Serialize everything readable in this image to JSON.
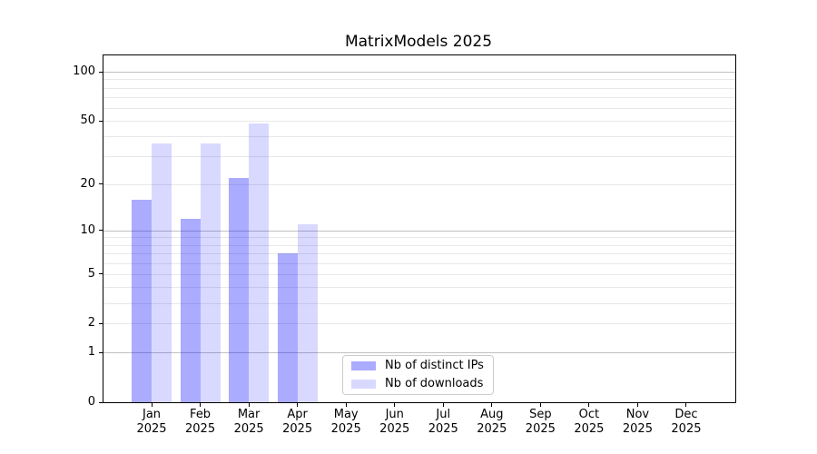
{
  "chart_data": {
    "type": "bar",
    "title": "MatrixModels 2025",
    "categories": [
      {
        "month": "Jan",
        "year": "2025"
      },
      {
        "month": "Feb",
        "year": "2025"
      },
      {
        "month": "Mar",
        "year": "2025"
      },
      {
        "month": "Apr",
        "year": "2025"
      },
      {
        "month": "May",
        "year": "2025"
      },
      {
        "month": "Jun",
        "year": "2025"
      },
      {
        "month": "Jul",
        "year": "2025"
      },
      {
        "month": "Aug",
        "year": "2025"
      },
      {
        "month": "Sep",
        "year": "2025"
      },
      {
        "month": "Oct",
        "year": "2025"
      },
      {
        "month": "Nov",
        "year": "2025"
      },
      {
        "month": "Dec",
        "year": "2025"
      }
    ],
    "series": [
      {
        "name": "Nb of distinct IPs",
        "color": "rgba(0,0,255,0.33)",
        "values": [
          16,
          12,
          22,
          7,
          null,
          null,
          null,
          null,
          null,
          null,
          null,
          null
        ]
      },
      {
        "name": "Nb of downloads",
        "color": "rgba(0,0,255,0.15)",
        "values": [
          36,
          36,
          48,
          11,
          null,
          null,
          null,
          null,
          null,
          null,
          null,
          null
        ]
      }
    ],
    "yscale": "log1p",
    "ylim": [
      0,
      127
    ],
    "yticks": [
      0,
      1,
      2,
      5,
      10,
      20,
      50,
      100
    ],
    "major_gridlines": [
      1,
      10,
      100
    ],
    "minor_gridlines": [
      2,
      3,
      4,
      5,
      6,
      7,
      8,
      9,
      20,
      30,
      40,
      50,
      60,
      70,
      80,
      90
    ],
    "grid_major_color": "#c0c0c0",
    "grid_minor_color": "#e8e8e8",
    "axis_color": "#000000",
    "legend_position": "lower center"
  }
}
